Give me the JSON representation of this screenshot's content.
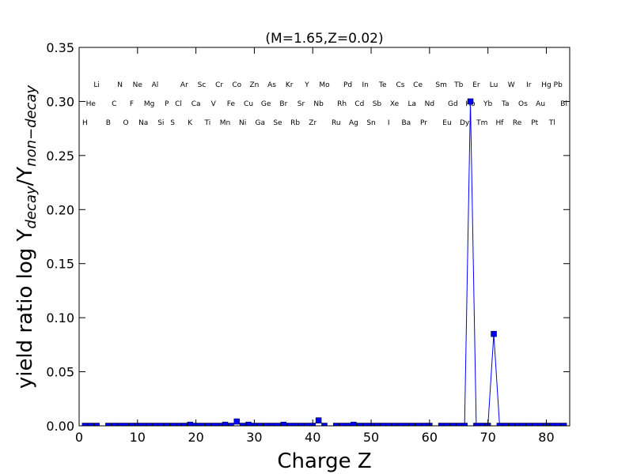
{
  "chart_data": {
    "type": "line",
    "title": "(M=1.65,Z=0.02)",
    "xlabel": "Charge Z",
    "ylabel": [
      "yield ratio log Y",
      "decay",
      "/Y",
      "non−decay"
    ],
    "color": "#0000ff",
    "marker": "square",
    "x": [
      1,
      2,
      3,
      4,
      5,
      6,
      7,
      8,
      9,
      10,
      11,
      12,
      13,
      14,
      15,
      16,
      17,
      18,
      19,
      20,
      21,
      22,
      23,
      24,
      25,
      26,
      27,
      28,
      29,
      30,
      31,
      32,
      33,
      34,
      35,
      36,
      37,
      38,
      39,
      40,
      41,
      42,
      43,
      44,
      45,
      46,
      47,
      48,
      49,
      50,
      51,
      52,
      53,
      54,
      55,
      56,
      57,
      58,
      59,
      60,
      61,
      62,
      63,
      64,
      65,
      66,
      67,
      68,
      69,
      70,
      71,
      72,
      73,
      74,
      75,
      76,
      77,
      78,
      79,
      80,
      81,
      82,
      83
    ],
    "values": [
      0,
      0,
      0,
      null,
      0,
      0,
      0,
      0,
      0,
      0,
      0,
      0,
      0,
      0,
      0,
      0,
      0,
      0,
      0.001,
      0,
      0,
      0,
      0,
      0,
      0.001,
      0,
      0.004,
      0,
      0.001,
      0,
      0,
      0,
      0,
      0,
      0.001,
      0,
      0,
      0,
      0,
      0,
      0.005,
      0,
      null,
      0,
      0,
      0,
      0.001,
      0,
      0,
      0,
      0,
      0,
      0,
      0,
      0,
      0,
      0,
      0,
      0,
      0,
      null,
      0,
      0,
      0,
      0,
      0,
      0.3,
      0,
      0,
      0,
      0.085,
      0,
      0,
      0,
      0,
      0,
      0,
      0,
      0,
      0,
      0,
      0,
      0
    ],
    "labels": [
      "H",
      "He",
      "Li",
      null,
      "B",
      "C",
      "N",
      "O",
      "F",
      "Ne",
      "Na",
      "Mg",
      "Al",
      "Si",
      "P",
      "S",
      "Cl",
      "Ar",
      "K",
      "Ca",
      "Sc",
      "Ti",
      "V",
      "Cr",
      "Mn",
      "Fe",
      "Co",
      "Ni",
      "Cu",
      "Zn",
      "Ga",
      "Ge",
      "As",
      "Se",
      "Br",
      "Kr",
      "Rb",
      "Sr",
      "Y",
      "Zr",
      "Nb",
      "Mo",
      null,
      "Ru",
      "Rh",
      "Pd",
      "Ag",
      "Cd",
      "In",
      "Sn",
      "Sb",
      "Te",
      "I",
      "Xe",
      "Cs",
      "Ba",
      "La",
      "Ce",
      "Pr",
      "Nd",
      null,
      "Sm",
      "Eu",
      "Gd",
      "Tb",
      "Dy",
      "Ho",
      "Er",
      "Tm",
      "Yb",
      "Lu",
      "Hf",
      "Ta",
      "W",
      "Re",
      "Os",
      "Ir",
      "Pt",
      "Au",
      "Hg",
      "Tl",
      "Pb",
      "Bi"
    ],
    "xlim": [
      0,
      84
    ],
    "ylim": [
      0,
      0.35
    ],
    "xticks": [
      0,
      10,
      20,
      30,
      40,
      50,
      60,
      70,
      80
    ],
    "yticks": [
      {
        "value": 0,
        "label": "0.00"
      },
      {
        "value": 0.05,
        "label": "0.05"
      },
      {
        "value": 0.1,
        "label": "0.10"
      },
      {
        "value": 0.15,
        "label": "0.15"
      },
      {
        "value": 0.2,
        "label": "0.20"
      },
      {
        "value": 0.25,
        "label": "0.25"
      },
      {
        "value": 0.3,
        "label": "0.30"
      },
      {
        "value": 0.35,
        "label": "0.35"
      }
    ]
  }
}
